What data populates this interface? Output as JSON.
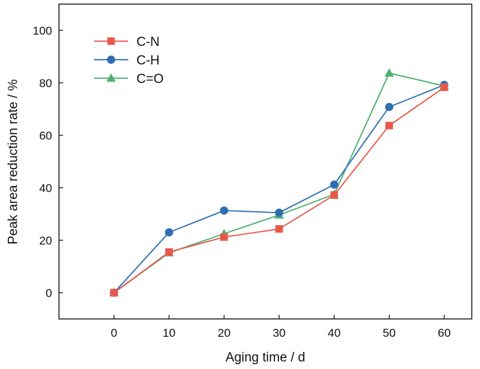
{
  "chart_data": {
    "type": "line",
    "title": "",
    "xlabel": "Aging time / d",
    "ylabel": "Peak area reduction rate / %",
    "x": [
      0,
      10,
      20,
      30,
      40,
      50,
      60
    ],
    "xticks": [
      "0",
      "10",
      "20",
      "30",
      "40",
      "50",
      "60"
    ],
    "yticks": [
      "0",
      "20",
      "40",
      "60",
      "80",
      "100"
    ],
    "xlim": [
      -10,
      65
    ],
    "ylim": [
      -10,
      110
    ],
    "grid": false,
    "legend_position": "top-left",
    "series": [
      {
        "name": "C-N",
        "color": "#e8584a",
        "marker": "square",
        "values": [
          0,
          15.5,
          21.2,
          24.3,
          37.2,
          63.7,
          78.3
        ]
      },
      {
        "name": "C-H",
        "color": "#2f6fb0",
        "marker": "circle",
        "values": [
          0,
          23.0,
          31.3,
          30.5,
          41.2,
          70.8,
          79.2
        ]
      },
      {
        "name": "C=O",
        "color": "#4cb06f",
        "marker": "triangle",
        "values": [
          0,
          15.2,
          22.5,
          29.6,
          37.5,
          83.7,
          78.8
        ]
      }
    ]
  }
}
